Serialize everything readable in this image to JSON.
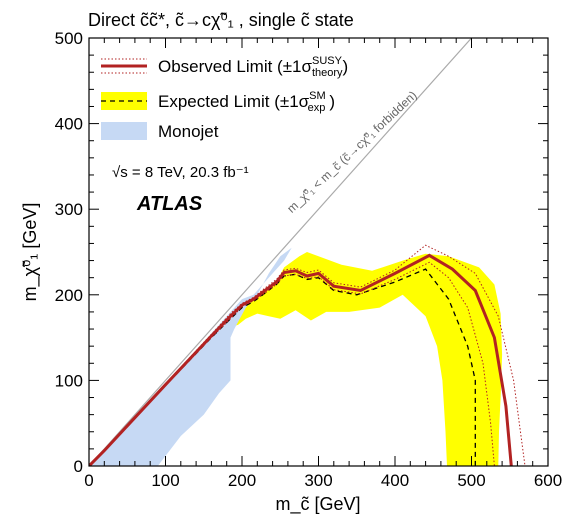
{
  "chart_data": {
    "type": "area",
    "title": "Direct c̃c̃*, c̃→cχ̃⁰₁ , single c̃ state",
    "xlabel": "m_c̃ [GeV]",
    "ylabel": "m_χ̃⁰₁ [GeV]",
    "xlim": [
      0,
      600
    ],
    "ylim": [
      0,
      500
    ],
    "x_ticks": [
      "0",
      "100",
      "200",
      "300",
      "400",
      "500",
      "600"
    ],
    "y_ticks": [
      "0",
      "100",
      "200",
      "300",
      "400",
      "500"
    ],
    "legend_placement": "top-left",
    "legend": {
      "observed": "Observed Limit (±1σ",
      "observed_sup": "SUSY",
      "observed_sub": "theory",
      "expected": "Expected Limit (±1σ",
      "expected_sup": "SM",
      "expected_sub": "exp",
      "monojet": "Monojet"
    },
    "annotations": {
      "energy": "√s = 8 TeV, 20.3 fb⁻¹",
      "experiment": "ATLAS",
      "forbidden": "m_χ̃⁰₁ < m_c̃ (c̃→cχ̃⁰₁ forbidden)"
    },
    "colors": {
      "observed": "#b22222",
      "expected_band": "#ffff00",
      "monojet": "#c6d9f4",
      "diagonal": "#aaaaaa"
    },
    "series": {
      "expected_band": [
        [
          0,
          0
        ],
        [
          20,
          18
        ],
        [
          50,
          47
        ],
        [
          100,
          95
        ],
        [
          160,
          152
        ],
        [
          185,
          175
        ],
        [
          200,
          188
        ],
        [
          215,
          195
        ],
        [
          230,
          205
        ],
        [
          245,
          215
        ],
        [
          255,
          232
        ],
        [
          275,
          245
        ],
        [
          285,
          250
        ],
        [
          300,
          245
        ],
        [
          330,
          235
        ],
        [
          370,
          228
        ],
        [
          410,
          240
        ],
        [
          440,
          248
        ],
        [
          470,
          245
        ],
        [
          510,
          232
        ],
        [
          530,
          212
        ],
        [
          538,
          178
        ],
        [
          540,
          130
        ],
        [
          538,
          80
        ],
        [
          536,
          40
        ],
        [
          535,
          0
        ],
        [
          468,
          0
        ],
        [
          466,
          40
        ],
        [
          462,
          100
        ],
        [
          455,
          140
        ],
        [
          440,
          175
        ],
        [
          410,
          200
        ],
        [
          380,
          185
        ],
        [
          340,
          180
        ],
        [
          310,
          180
        ],
        [
          290,
          170
        ],
        [
          270,
          182
        ],
        [
          250,
          172
        ],
        [
          235,
          175
        ],
        [
          220,
          178
        ],
        [
          205,
          172
        ],
        [
          195,
          165
        ],
        [
          180,
          160
        ],
        [
          160,
          140
        ],
        [
          100,
          90
        ],
        [
          50,
          45
        ],
        [
          20,
          17
        ]
      ],
      "monojet": [
        [
          0,
          0
        ],
        [
          20,
          19
        ],
        [
          50,
          48
        ],
        [
          100,
          96
        ],
        [
          150,
          145
        ],
        [
          180,
          175
        ],
        [
          200,
          195
        ],
        [
          215,
          200
        ],
        [
          225,
          210
        ],
        [
          240,
          225
        ],
        [
          255,
          240
        ],
        [
          265,
          255
        ],
        [
          250,
          245
        ],
        [
          235,
          225
        ],
        [
          220,
          200
        ],
        [
          205,
          185
        ],
        [
          190,
          160
        ],
        [
          185,
          150
        ],
        [
          185,
          100
        ],
        [
          170,
          85
        ],
        [
          150,
          60
        ],
        [
          120,
          35
        ],
        [
          90,
          0
        ]
      ],
      "observed_nominal": [
        [
          0,
          0
        ],
        [
          20,
          18
        ],
        [
          50,
          47
        ],
        [
          100,
          95
        ],
        [
          160,
          152
        ],
        [
          185,
          175
        ],
        [
          200,
          188
        ],
        [
          215,
          195
        ],
        [
          230,
          205
        ],
        [
          245,
          215
        ],
        [
          255,
          226
        ],
        [
          270,
          228
        ],
        [
          285,
          222
        ],
        [
          300,
          225
        ],
        [
          320,
          210
        ],
        [
          355,
          205
        ],
        [
          400,
          225
        ],
        [
          445,
          246
        ],
        [
          475,
          230
        ],
        [
          505,
          205
        ],
        [
          530,
          150
        ],
        [
          545,
          70
        ],
        [
          552,
          0
        ]
      ],
      "observed_up": [
        [
          0,
          0
        ],
        [
          20,
          19
        ],
        [
          50,
          48
        ],
        [
          100,
          96
        ],
        [
          160,
          154
        ],
        [
          185,
          178
        ],
        [
          200,
          190
        ],
        [
          215,
          197
        ],
        [
          230,
          208
        ],
        [
          245,
          218
        ],
        [
          255,
          229
        ],
        [
          270,
          231
        ],
        [
          285,
          226
        ],
        [
          300,
          229
        ],
        [
          320,
          214
        ],
        [
          355,
          209
        ],
        [
          400,
          229
        ],
        [
          440,
          258
        ],
        [
          470,
          245
        ],
        [
          505,
          225
        ],
        [
          535,
          175
        ],
        [
          555,
          100
        ],
        [
          570,
          0
        ]
      ],
      "observed_down": [
        [
          0,
          0
        ],
        [
          20,
          17
        ],
        [
          50,
          46
        ],
        [
          100,
          94
        ],
        [
          160,
          150
        ],
        [
          185,
          172
        ],
        [
          200,
          186
        ],
        [
          215,
          193
        ],
        [
          230,
          202
        ],
        [
          245,
          212
        ],
        [
          255,
          222
        ],
        [
          270,
          224
        ],
        [
          285,
          219
        ],
        [
          300,
          221
        ],
        [
          320,
          206
        ],
        [
          355,
          201
        ],
        [
          400,
          218
        ],
        [
          445,
          238
        ],
        [
          470,
          220
        ],
        [
          495,
          185
        ],
        [
          515,
          120
        ],
        [
          525,
          50
        ],
        [
          530,
          0
        ]
      ],
      "expected_nominal": [
        [
          0,
          0
        ],
        [
          20,
          18
        ],
        [
          50,
          46
        ],
        [
          100,
          94
        ],
        [
          160,
          150
        ],
        [
          185,
          172
        ],
        [
          200,
          185
        ],
        [
          215,
          192
        ],
        [
          230,
          202
        ],
        [
          245,
          212
        ],
        [
          255,
          222
        ],
        [
          270,
          224
        ],
        [
          285,
          218
        ],
        [
          300,
          220
        ],
        [
          320,
          205
        ],
        [
          350,
          200
        ],
        [
          400,
          215
        ],
        [
          440,
          230
        ],
        [
          470,
          195
        ],
        [
          495,
          140
        ],
        [
          505,
          100
        ],
        [
          505,
          40
        ],
        [
          505,
          0
        ]
      ]
    }
  }
}
